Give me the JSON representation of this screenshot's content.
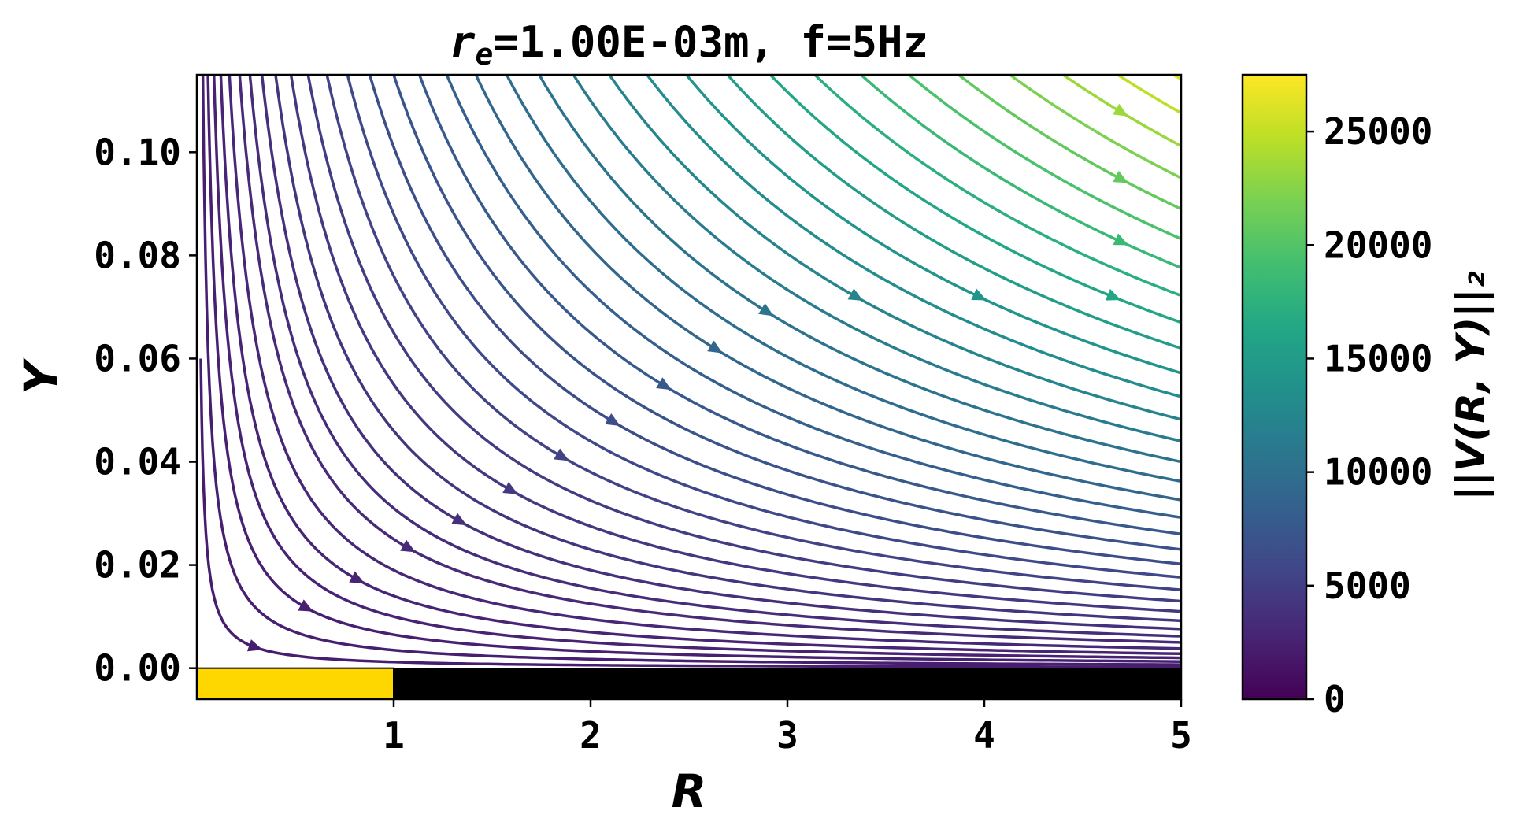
{
  "chart_data": {
    "type": "streamplot",
    "title_var": "r",
    "title_sub": "e",
    "title_rest": "=1.00E-03m, f=5Hz",
    "xlabel": "R",
    "ylabel": "Y",
    "xlim": [
      0,
      5
    ],
    "ylim": [
      -0.006,
      0.115
    ],
    "xticks": [
      1,
      2,
      3,
      4,
      5
    ],
    "xtick_labels": [
      "1",
      "2",
      "3",
      "4",
      "5"
    ],
    "yticks": [
      0.0,
      0.02,
      0.04,
      0.06,
      0.08,
      0.1
    ],
    "ytick_labels": [
      "0.00",
      "0.02",
      "0.04",
      "0.06",
      "0.08",
      "0.10"
    ],
    "colorbar": {
      "label": "||V(R, Y)||₂",
      "min": 0,
      "max": 27500,
      "ticks": [
        0,
        5000,
        10000,
        15000,
        20000,
        25000
      ],
      "tick_labels": [
        "0",
        "5000",
        "10000",
        "15000",
        "20000",
        "25000"
      ],
      "colormap": "viridis"
    },
    "boundary": {
      "electrode": {
        "r_start": 0,
        "r_end": 1,
        "color": "#FFD700"
      },
      "insulator": {
        "r_start": 1,
        "r_end": 5,
        "color": "#000000"
      },
      "y_bottom": -0.006
    },
    "field_model": "stream lines follow R·Y = constant; speed grows with R²+Y²",
    "stream_constants": [
      0.0012,
      0.0035,
      0.0065,
      0.01,
      0.014,
      0.019,
      0.025,
      0.031,
      0.038,
      0.046,
      0.055,
      0.065,
      0.076,
      0.088,
      0.101,
      0.115,
      0.13,
      0.146,
      0.163,
      0.181,
      0.2,
      0.22,
      0.241,
      0.263,
      0.286,
      0.31,
      0.335,
      0.361,
      0.388,
      0.416,
      0.445,
      0.475,
      0.506,
      0.538,
      0.571,
      0.605
    ],
    "grid": false,
    "legend": "none"
  }
}
